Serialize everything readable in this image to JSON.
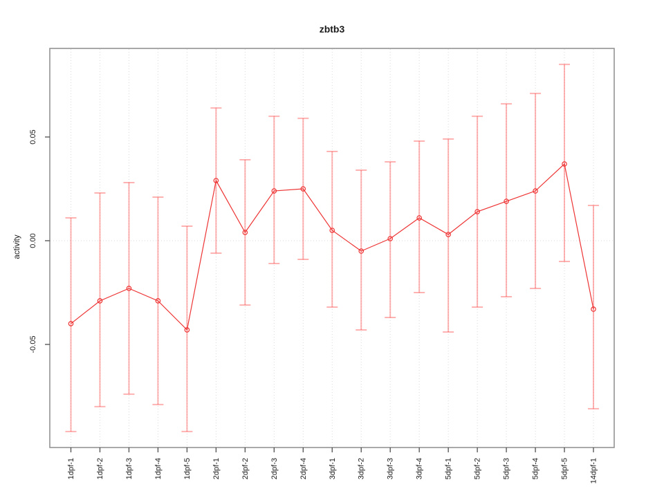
{
  "chart_data": {
    "type": "line",
    "title": "zbtb3",
    "xlabel": "",
    "ylabel": "activity",
    "categories": [
      "1dpf-1",
      "1dpf-2",
      "1dpf-3",
      "1dpf-4",
      "1dpf-5",
      "2dpf-1",
      "2dpf-2",
      "2dpf-3",
      "2dpf-4",
      "3dpf-1",
      "3dpf-2",
      "3dpf-3",
      "3dpf-4",
      "5dpf-1",
      "5dpf-2",
      "5dpf-3",
      "5dpf-4",
      "5dpf-5",
      "14dpf-1"
    ],
    "series": [
      {
        "name": "activity",
        "values": [
          -0.04,
          -0.029,
          -0.023,
          -0.029,
          -0.043,
          0.029,
          0.004,
          0.024,
          0.025,
          0.005,
          -0.005,
          0.001,
          0.011,
          0.003,
          0.014,
          0.019,
          0.024,
          0.037,
          -0.033
        ],
        "error_high": [
          0.011,
          0.023,
          0.028,
          0.021,
          0.007,
          0.064,
          0.039,
          0.06,
          0.059,
          0.043,
          0.034,
          0.038,
          0.048,
          0.049,
          0.06,
          0.066,
          0.071,
          0.085,
          0.017
        ],
        "error_low": [
          -0.092,
          -0.08,
          -0.074,
          -0.079,
          -0.092,
          -0.006,
          -0.031,
          -0.011,
          -0.009,
          -0.032,
          -0.043,
          -0.037,
          -0.025,
          -0.044,
          -0.032,
          -0.027,
          -0.023,
          -0.01,
          -0.081
        ]
      }
    ],
    "yticks": [
      -0.05,
      0.0,
      0.05
    ],
    "ytick_labels": [
      "-0.05",
      "0.00",
      "0.05"
    ],
    "ylim": [
      -0.0997,
      0.0927
    ],
    "zero_line": 0,
    "grid": "vertical dotted gridlines per category, dotted horizontal line at zero",
    "legend": "none",
    "marker": "open-circle",
    "colors": {
      "point_line": "#ee3333",
      "error_bar": "#ff5555",
      "error_bar_opacity": "0.45",
      "grid": "#d9d9d9",
      "box": "#8c8c8c",
      "tick": "#4d4d4d",
      "text": "#1a1a1a",
      "background": "#ffffff"
    }
  }
}
